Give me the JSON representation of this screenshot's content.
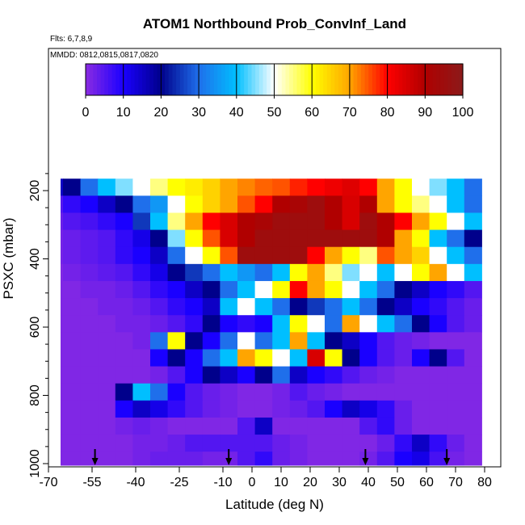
{
  "chart_data": {
    "type": "heatmap",
    "title": "ATOM1 Northbound Prob_ConvInf_Land",
    "annotations": [
      "Flts: 6,7,8,9",
      "MMDD: 0812,0815,0817,0820"
    ],
    "xlabel": "Latitude (deg N)",
    "ylabel": "PSXC (mbar)",
    "xlim": [
      -70,
      80
    ],
    "ylim": [
      1000,
      150
    ],
    "y_reversed": true,
    "x_ticks": [
      -70,
      -55,
      -40,
      -25,
      -10,
      0,
      10,
      20,
      30,
      40,
      50,
      60,
      70,
      80
    ],
    "y_ticks": [
      200,
      400,
      600,
      800,
      1000
    ],
    "colorbar": {
      "min": 0,
      "max": 100,
      "ticks": [
        0,
        10,
        20,
        30,
        40,
        50,
        60,
        70,
        80,
        90,
        100
      ],
      "colors": [
        "#8B2BE2",
        "#1A00FF",
        "#00008B",
        "#1F6FEB",
        "#00BFFF",
        "#FFFFFF",
        "#FFFF00",
        "#FFA500",
        "#FF0000",
        "#B00000",
        "#8B1A1A"
      ]
    },
    "flight_marker_latitudes": [
      -54,
      -8,
      39,
      67
    ],
    "pressure_levels": [
      190,
      240,
      290,
      340,
      390,
      440,
      490,
      540,
      590,
      640,
      690,
      740,
      790,
      840,
      890,
      940,
      990
    ],
    "latitude_bins": [
      -68,
      -62,
      -56,
      -50,
      -44,
      -38,
      -32,
      -26,
      -20,
      -14,
      -8,
      -2,
      4,
      10,
      16,
      22,
      28,
      34,
      40,
      46,
      52,
      58,
      64,
      70,
      76
    ],
    "values": [
      [
        15,
        20,
        30,
        40,
        45,
        50,
        55,
        60,
        62,
        65,
        70,
        72,
        74,
        75,
        78,
        80,
        82,
        84,
        80,
        70,
        60,
        50,
        45,
        40,
        30
      ],
      [
        5,
        8,
        10,
        15,
        20,
        30,
        35,
        50,
        60,
        65,
        70,
        75,
        80,
        90,
        92,
        95,
        90,
        85,
        90,
        70,
        60,
        55,
        50,
        40,
        30
      ],
      [
        3,
        5,
        6,
        8,
        10,
        25,
        40,
        55,
        70,
        80,
        85,
        90,
        92,
        95,
        95,
        95,
        90,
        85,
        95,
        90,
        80,
        70,
        60,
        50,
        40
      ],
      [
        2,
        3,
        4,
        5,
        8,
        12,
        20,
        45,
        60,
        75,
        85,
        90,
        95,
        95,
        95,
        95,
        95,
        95,
        95,
        90,
        70,
        60,
        40,
        30,
        20
      ],
      [
        2,
        3,
        4,
        5,
        8,
        10,
        15,
        30,
        50,
        60,
        75,
        95,
        95,
        95,
        95,
        80,
        70,
        60,
        55,
        75,
        70,
        65,
        50,
        40,
        30
      ],
      [
        1,
        2,
        3,
        4,
        5,
        8,
        12,
        20,
        25,
        30,
        40,
        35,
        30,
        40,
        60,
        70,
        55,
        45,
        50,
        40,
        50,
        60,
        70,
        50,
        40
      ],
      [
        1,
        1,
        2,
        2,
        3,
        5,
        8,
        10,
        15,
        20,
        30,
        40,
        50,
        60,
        80,
        70,
        60,
        50,
        40,
        30,
        20,
        15,
        10,
        8,
        5
      ],
      [
        1,
        1,
        1,
        2,
        2,
        3,
        5,
        8,
        10,
        15,
        40,
        50,
        40,
        30,
        20,
        25,
        30,
        40,
        30,
        20,
        15,
        10,
        8,
        5,
        3
      ],
      [
        1,
        1,
        1,
        1,
        2,
        2,
        3,
        5,
        8,
        20,
        10,
        8,
        10,
        40,
        60,
        50,
        30,
        70,
        50,
        40,
        30,
        20,
        10,
        5,
        3
      ],
      [
        1,
        1,
        1,
        1,
        1,
        2,
        30,
        60,
        20,
        10,
        30,
        50,
        30,
        40,
        70,
        40,
        20,
        15,
        10,
        5,
        3,
        2,
        1,
        1,
        1
      ],
      [
        1,
        1,
        1,
        1,
        1,
        1,
        10,
        20,
        10,
        30,
        40,
        70,
        60,
        50,
        40,
        85,
        60,
        20,
        10,
        5,
        3,
        10,
        20,
        5,
        1
      ],
      [
        1,
        1,
        1,
        1,
        1,
        1,
        2,
        5,
        10,
        20,
        15,
        10,
        20,
        30,
        15,
        10,
        8,
        5,
        3,
        2,
        1,
        1,
        1,
        1,
        1
      ],
      [
        1,
        1,
        1,
        1,
        20,
        40,
        30,
        10,
        5,
        3,
        2,
        1,
        1,
        2,
        5,
        3,
        2,
        1,
        1,
        1,
        1,
        1,
        1,
        1,
        1
      ],
      [
        1,
        1,
        1,
        1,
        10,
        15,
        12,
        8,
        5,
        3,
        2,
        1,
        1,
        2,
        3,
        5,
        10,
        15,
        12,
        8,
        3,
        1,
        1,
        1,
        1
      ],
      [
        1,
        1,
        1,
        1,
        2,
        3,
        2,
        1,
        1,
        1,
        1,
        5,
        15,
        1,
        1,
        1,
        1,
        1,
        5,
        8,
        3,
        1,
        1,
        1,
        1
      ],
      [
        1,
        1,
        1,
        1,
        1,
        2,
        2,
        3,
        5,
        5,
        5,
        5,
        5,
        3,
        2,
        1,
        1,
        1,
        1,
        3,
        8,
        15,
        8,
        3,
        1
      ],
      [
        1,
        1,
        1,
        1,
        1,
        2,
        3,
        3,
        3,
        2,
        2,
        5,
        8,
        3,
        2,
        1,
        1,
        1,
        2,
        5,
        10,
        12,
        6,
        2,
        1
      ]
    ]
  }
}
